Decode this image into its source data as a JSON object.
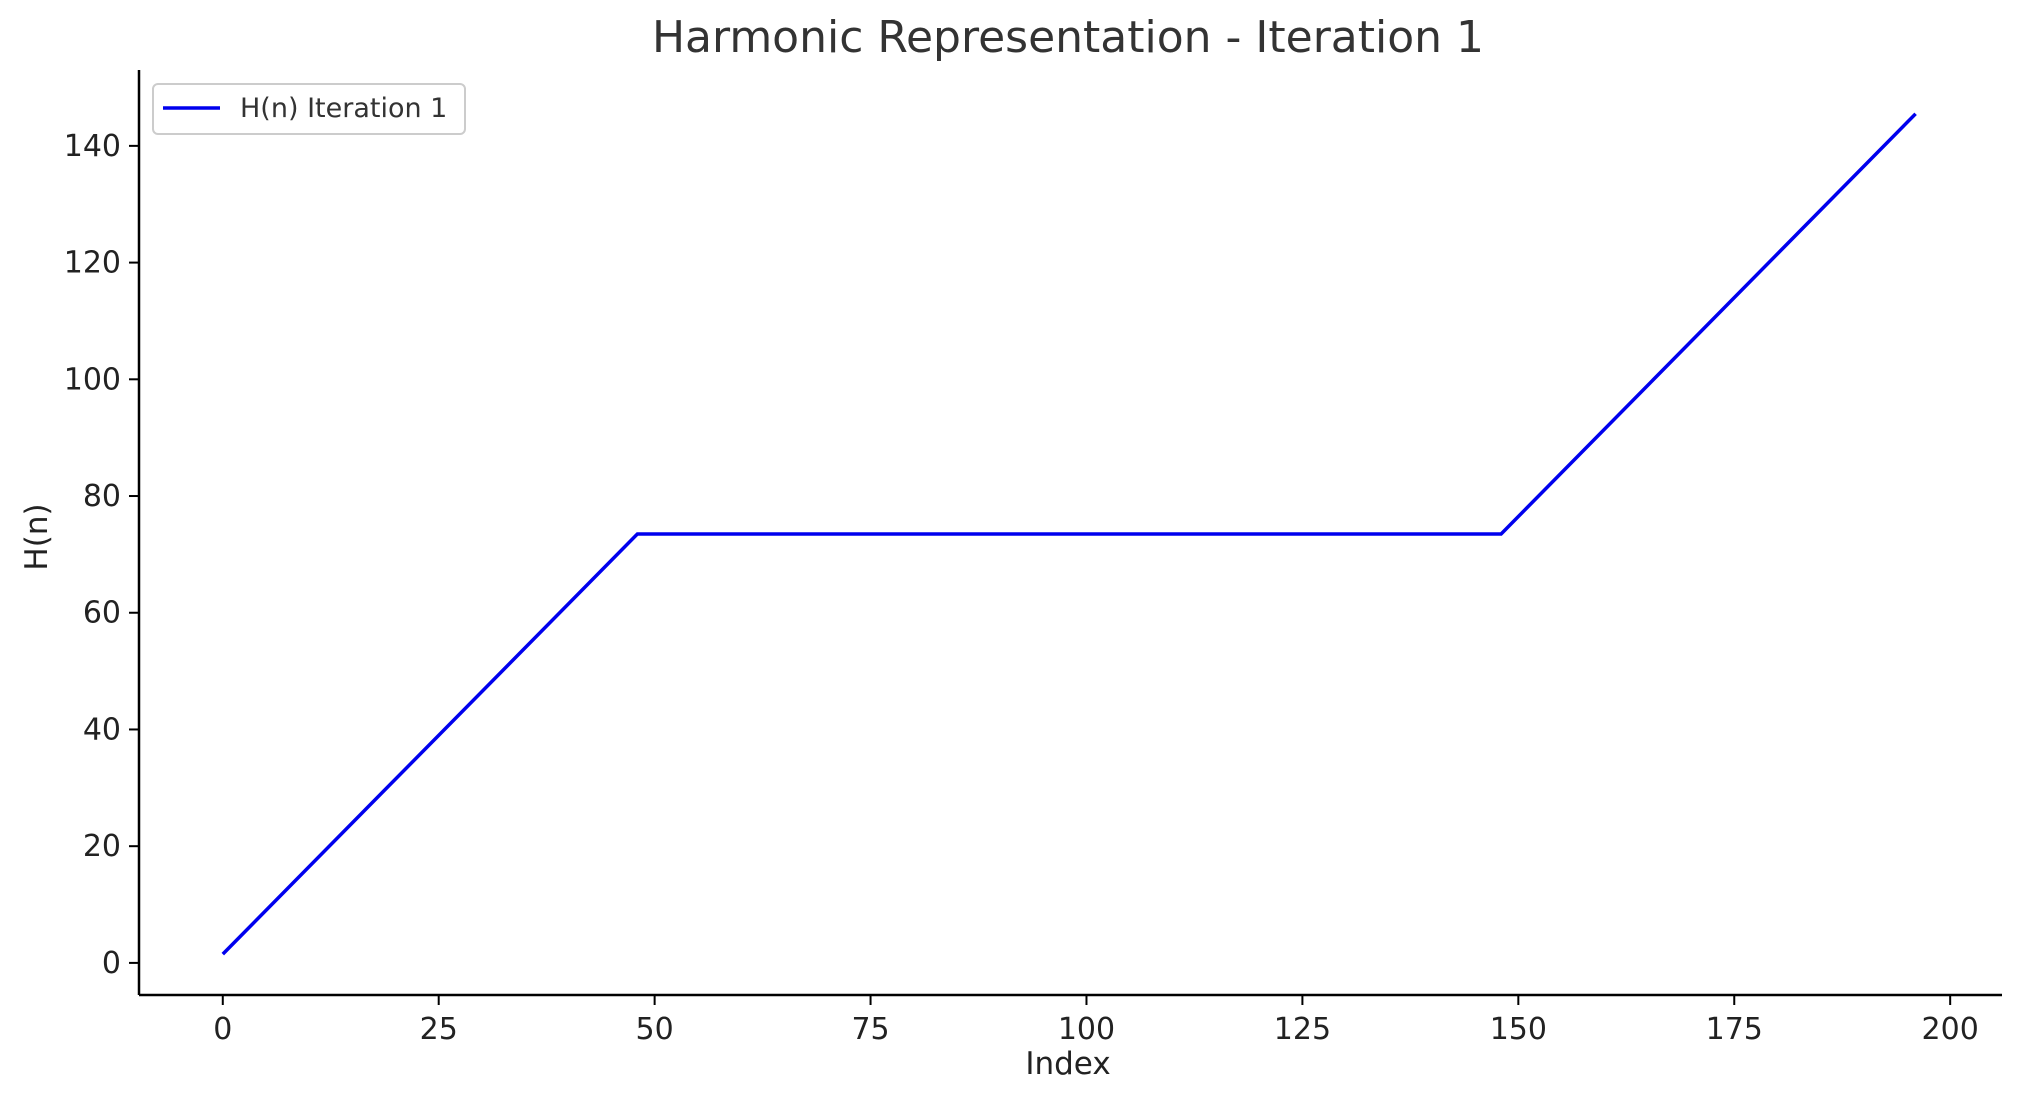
{
  "chart_data": {
    "type": "line",
    "title": "Harmonic Representation - Iteration 1",
    "xlabel": "Index",
    "ylabel": "H(n)",
    "xlim": [
      -9.7,
      206
    ],
    "ylim": [
      -5.5,
      153
    ],
    "x_ticks": [
      0,
      25,
      50,
      75,
      100,
      125,
      150,
      175,
      200
    ],
    "y_ticks": [
      0,
      20,
      40,
      60,
      80,
      100,
      120,
      140
    ],
    "grid": false,
    "legend_position": "top-left",
    "series": [
      {
        "name": "H(n) Iteration 1",
        "color": "#0000ee",
        "x": [
          0,
          48,
          148,
          196
        ],
        "y": [
          1.5,
          73.5,
          73.5,
          145.5
        ]
      }
    ]
  }
}
